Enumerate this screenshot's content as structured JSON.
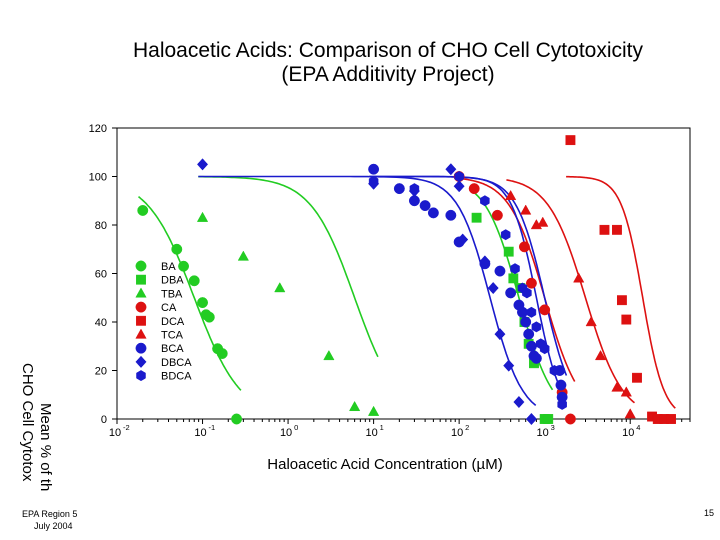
{
  "footer": {
    "left_line1": "EPA Region 5",
    "left_line2": "July 2004",
    "page_number": "15"
  },
  "colors": {
    "green": "#22cc22",
    "red": "#dd1111",
    "blue": "#1a1acc"
  },
  "chart_data": {
    "type": "scatter",
    "title": "Haloacetic Acids: Comparison of CHO Cell Cytotoxicity",
    "subtitle": "(EPA Additivity Project)",
    "xlabel": "Haloacetic Acid Concentration (µM)",
    "ylabel_line1": "Mean % of th",
    "ylabel_line2": "CHO Cell Cytotox",
    "xscale": "log",
    "xlim": [
      0.01,
      50000
    ],
    "ylim": [
      0,
      120
    ],
    "x_ticks": [
      {
        "value": 0.01,
        "base": "10",
        "exp": "-2"
      },
      {
        "value": 0.1,
        "base": "10",
        "exp": "-1"
      },
      {
        "value": 1,
        "base": "10",
        "exp": "0"
      },
      {
        "value": 10,
        "base": "10",
        "exp": "1"
      },
      {
        "value": 100,
        "base": "10",
        "exp": "2"
      },
      {
        "value": 1000,
        "base": "10",
        "exp": "3"
      },
      {
        "value": 10000,
        "base": "10",
        "exp": "4"
      }
    ],
    "y_ticks": [
      0,
      20,
      40,
      60,
      80,
      100,
      120
    ],
    "grid": false,
    "legend_position": "center-left",
    "series": [
      {
        "name": "BA",
        "marker": "circle",
        "color": "green",
        "ec50": 0.08,
        "hill": 1.6,
        "points": [
          [
            0.02,
            86
          ],
          [
            0.05,
            70
          ],
          [
            0.06,
            63
          ],
          [
            0.08,
            57
          ],
          [
            0.1,
            48
          ],
          [
            0.11,
            43
          ],
          [
            0.12,
            42
          ],
          [
            0.15,
            29
          ],
          [
            0.17,
            27
          ],
          [
            0.25,
            0
          ]
        ]
      },
      {
        "name": "DBA",
        "marker": "square",
        "color": "green",
        "ec50": 500,
        "hill": 2.2,
        "points": [
          [
            160,
            83
          ],
          [
            380,
            69
          ],
          [
            430,
            58
          ],
          [
            520,
            54
          ],
          [
            580,
            40
          ],
          [
            650,
            31
          ],
          [
            750,
            23
          ],
          [
            1000,
            0
          ],
          [
            1100,
            0
          ]
        ]
      },
      {
        "name": "TBA",
        "marker": "triangle",
        "color": "green",
        "ec50": 6,
        "hill": 1.7,
        "points": [
          [
            0.1,
            83
          ],
          [
            0.3,
            67
          ],
          [
            0.8,
            54
          ],
          [
            3,
            26
          ],
          [
            6,
            5
          ],
          [
            10,
            3
          ]
        ]
      },
      {
        "name": "CA",
        "marker": "circle",
        "color": "red",
        "ec50": 1000,
        "hill": 2.1,
        "points": [
          [
            100,
            100
          ],
          [
            150,
            95
          ],
          [
            280,
            84
          ],
          [
            580,
            71
          ],
          [
            700,
            56
          ],
          [
            1000,
            45
          ],
          [
            1600,
            11
          ],
          [
            2000,
            0
          ]
        ]
      },
      {
        "name": "DCA",
        "marker": "square",
        "color": "red",
        "ec50": 14000,
        "hill": 3.5,
        "points": [
          [
            2000,
            115
          ],
          [
            5000,
            78
          ],
          [
            7000,
            78
          ],
          [
            8000,
            49
          ],
          [
            9000,
            41
          ],
          [
            12000,
            17
          ],
          [
            18000,
            1
          ],
          [
            21000,
            0
          ],
          [
            25000,
            0
          ],
          [
            30000,
            0
          ]
        ]
      },
      {
        "name": "TCA",
        "marker": "triangle",
        "color": "red",
        "ec50": 3000,
        "hill": 2.0,
        "points": [
          [
            400,
            92
          ],
          [
            600,
            86
          ],
          [
            800,
            80
          ],
          [
            950,
            81
          ],
          [
            2500,
            58
          ],
          [
            3500,
            40
          ],
          [
            4500,
            26
          ],
          [
            7000,
            13
          ],
          [
            9000,
            11
          ],
          [
            10000,
            2
          ]
        ]
      },
      {
        "name": "BCA",
        "marker": "circle",
        "color": "blue",
        "ec50": 1000,
        "hill": 2.6,
        "points": [
          [
            10,
            103
          ],
          [
            20,
            95
          ],
          [
            30,
            90
          ],
          [
            40,
            88
          ],
          [
            50,
            85
          ],
          [
            80,
            84
          ],
          [
            100,
            73
          ],
          [
            200,
            64
          ],
          [
            300,
            61
          ],
          [
            400,
            52
          ],
          [
            500,
            47
          ],
          [
            550,
            44
          ],
          [
            600,
            40
          ],
          [
            650,
            35
          ],
          [
            700,
            30
          ],
          [
            750,
            26
          ],
          [
            800,
            25
          ],
          [
            1500,
            20
          ],
          [
            1550,
            14
          ],
          [
            1600,
            9
          ]
        ]
      },
      {
        "name": "DBCA",
        "marker": "diamond",
        "color": "blue",
        "ec50": 230,
        "hill": 2.3,
        "points": [
          [
            0.1,
            105
          ],
          [
            10,
            97
          ],
          [
            30,
            94
          ],
          [
            80,
            103
          ],
          [
            100,
            96
          ],
          [
            110,
            74
          ],
          [
            200,
            65
          ],
          [
            250,
            54
          ],
          [
            300,
            35
          ],
          [
            380,
            22
          ],
          [
            500,
            7
          ],
          [
            700,
            0
          ]
        ]
      },
      {
        "name": "BDCA",
        "marker": "hexagon",
        "color": "blue",
        "ec50": 800,
        "hill": 3.0,
        "points": [
          [
            10,
            98
          ],
          [
            30,
            95
          ],
          [
            100,
            100
          ],
          [
            200,
            90
          ],
          [
            350,
            76
          ],
          [
            450,
            62
          ],
          [
            550,
            54
          ],
          [
            620,
            52
          ],
          [
            700,
            44
          ],
          [
            800,
            38
          ],
          [
            900,
            31
          ],
          [
            1000,
            29
          ],
          [
            1300,
            20
          ],
          [
            1600,
            6
          ]
        ]
      }
    ]
  }
}
